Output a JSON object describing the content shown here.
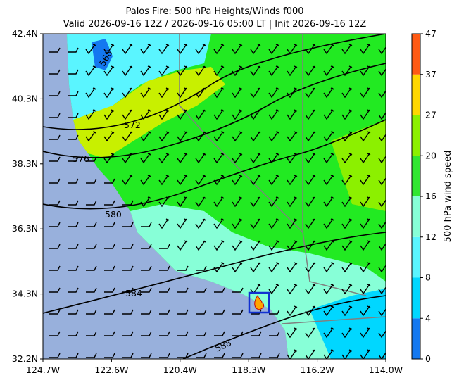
{
  "header": {
    "title": "Palos Fire: 500 hPa Heights/Winds f000",
    "subtitle": "Valid 2026-09-16 12Z / 2026-09-16 05:00 LT | Init 2026-09-16 12Z"
  },
  "map": {
    "xticks": [
      "124.7W",
      "122.6W",
      "120.4W",
      "118.3W",
      "116.2W",
      "114.0W"
    ],
    "yticks": [
      "32.2N",
      "34.3N",
      "36.3N",
      "38.3N",
      "40.3N",
      "42.4N"
    ],
    "contours": [
      568,
      572,
      576,
      580,
      584,
      588
    ]
  },
  "colorbar": {
    "label": "500 hPa wind speed",
    "ticks": [
      0,
      4,
      8,
      12,
      16,
      20,
      27,
      37,
      47
    ],
    "colors": [
      "#1478f0",
      "#00d7ff",
      "#5af5ff",
      "#87ffd7",
      "#32e632",
      "#8cf000",
      "#ffd700",
      "#ff5a14"
    ]
  }
}
